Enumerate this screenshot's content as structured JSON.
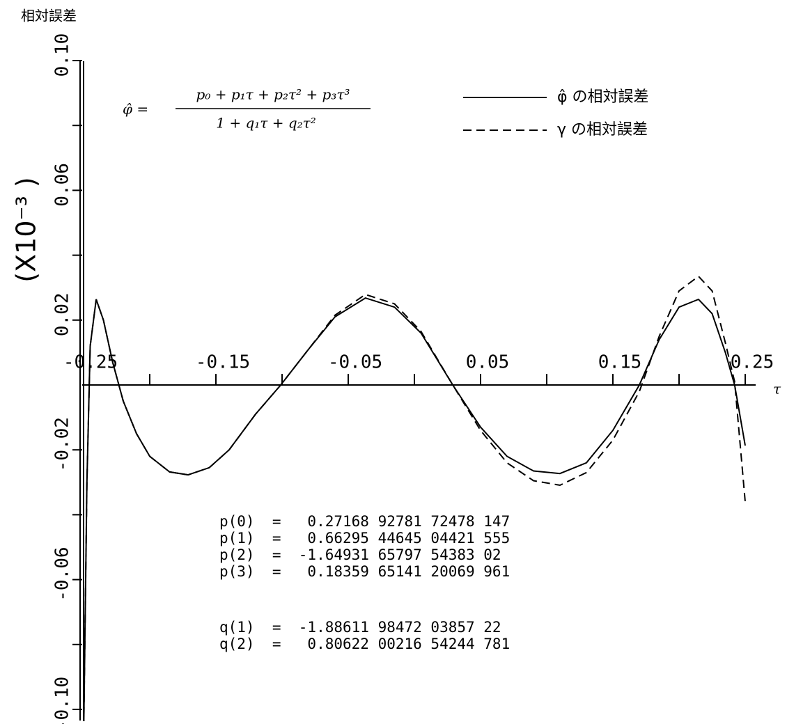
{
  "chart_data": {
    "type": "line",
    "y_label": "相対誤差",
    "y_unit": "(X10⁻³ )",
    "x_label": "τ",
    "formula": {
      "lhs": "φ̂ =",
      "numerator": "p₀ + p₁τ + p₂τ² + p₃τ³",
      "denominator": "1 + q₁τ + q₂τ²"
    },
    "p_coefficients": [
      "p(0)  =   0.27168 92781 72478 147",
      "p(1)  =   0.66295 44645 04421 555",
      "p(2)  =  -1.64931 65797 54383 02",
      "p(3)  =   0.18359 65141 20069 961"
    ],
    "q_coefficients": [
      "q(1)  =  -1.88611 98472 03857 22",
      "q(2)  =   0.80622 00216 54244 781"
    ],
    "x": [
      -0.25,
      -0.2475,
      -0.245,
      -0.2405,
      -0.235,
      -0.228,
      -0.22,
      -0.21,
      -0.2,
      -0.185,
      -0.171,
      -0.155,
      -0.14,
      -0.12,
      -0.101,
      -0.08,
      -0.06,
      -0.037,
      -0.015,
      0.005,
      0.029,
      0.05,
      0.07,
      0.09,
      0.11,
      0.13,
      0.15,
      0.17,
      0.185,
      0.2,
      0.2147,
      0.225,
      0.235,
      0.242,
      0.25
    ],
    "series": [
      {
        "name": "φ̂ の相対誤差",
        "color": "#000000",
        "style": "solid",
        "values": [
          -0.11,
          -0.03,
          0.012,
          0.0264,
          0.02,
          0.007,
          -0.005,
          -0.015,
          -0.022,
          -0.0268,
          -0.0277,
          -0.0255,
          -0.02,
          -0.009,
          0,
          0.011,
          0.021,
          0.0268,
          0.024,
          0.016,
          0,
          -0.013,
          -0.022,
          -0.0265,
          -0.0273,
          -0.024,
          -0.014,
          0,
          0.014,
          0.024,
          0.0264,
          0.022,
          0.01,
          0,
          -0.0187
        ]
      },
      {
        "name": "γ の相対誤差",
        "color": "#000000",
        "style": "dashed",
        "values": [
          -0.11,
          -0.03,
          0.012,
          0.0264,
          0.02,
          0.007,
          -0.005,
          -0.015,
          -0.022,
          -0.0268,
          -0.0277,
          -0.0255,
          -0.02,
          -0.009,
          0,
          0.011,
          0.0215,
          0.0279,
          0.025,
          0.0165,
          0,
          -0.014,
          -0.024,
          -0.0295,
          -0.0309,
          -0.027,
          -0.017,
          -0.002,
          0.015,
          0.029,
          0.0335,
          0.029,
          0.013,
          0.001,
          -0.036
        ]
      }
    ],
    "xlim": [
      -0.25,
      0.25
    ],
    "xticks": [
      -0.25,
      -0.15,
      -0.05,
      0.05,
      0.15,
      0.25
    ],
    "xminor": [
      -0.2,
      -0.1,
      0,
      0.1,
      0.2
    ],
    "ylim": [
      -0.1,
      0.1
    ],
    "yticks": [
      {
        "value": 0.1,
        "label": "0.10"
      },
      0.06,
      0.02,
      -0.02,
      -0.06,
      {
        "value": -0.1,
        "label": "-0.10"
      }
    ],
    "yminor": [
      0.08,
      0.04,
      -0.04,
      -0.08
    ],
    "legend": "top-right"
  }
}
